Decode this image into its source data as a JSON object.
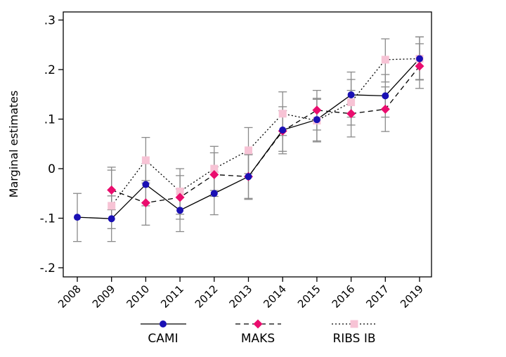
{
  "chart_data": {
    "type": "line",
    "title": "",
    "xlabel": "",
    "ylabel": "Marginal estimates",
    "ylim": [
      -0.22,
      0.32
    ],
    "y_ticks": [
      -0.2,
      -0.1,
      0,
      0.1,
      0.2,
      0.3
    ],
    "y_tick_labels": [
      "-.2",
      "-.1",
      "0",
      ".1",
      ".2",
      ".3"
    ],
    "categories": [
      "2008",
      "2009",
      "2010",
      "2011",
      "2012",
      "2013",
      "2014",
      "2015",
      "2016",
      "2017",
      "2019"
    ],
    "grid": false,
    "legend_position": "bottom",
    "error_bars": true,
    "series": [
      {
        "name": "CAMI",
        "color": "#1a10b4",
        "marker": "circle",
        "line_style": "solid",
        "values": [
          -0.098,
          -0.101,
          -0.032,
          -0.084,
          -0.05,
          -0.016,
          0.078,
          0.099,
          0.149,
          0.147,
          0.222
        ],
        "lower": [
          -0.147,
          -0.147,
          -0.075,
          -0.127,
          -0.093,
          -0.06,
          0.03,
          0.056,
          0.104,
          0.104,
          0.179
        ],
        "upper": [
          -0.05,
          -0.055,
          0.01,
          -0.041,
          -0.007,
          0.028,
          0.125,
          0.142,
          0.195,
          0.19,
          0.266
        ]
      },
      {
        "name": "MAKS",
        "color": "#ea0d6e",
        "marker": "diamond",
        "line_style": "dashed",
        "values": [
          null,
          -0.043,
          -0.069,
          -0.058,
          -0.012,
          -0.016,
          0.076,
          0.118,
          0.111,
          0.12,
          0.207
        ],
        "lower": [
          null,
          -0.083,
          -0.114,
          -0.102,
          -0.056,
          -0.062,
          0.035,
          0.078,
          0.064,
          0.075,
          0.162
        ],
        "upper": [
          null,
          -0.003,
          -0.024,
          -0.014,
          0.032,
          0.03,
          0.117,
          0.158,
          0.158,
          0.165,
          0.252
        ]
      },
      {
        "name": "RIBS IB",
        "color": "#f7c3d5",
        "marker": "square",
        "line_style": "dotted",
        "values": [
          null,
          -0.075,
          0.017,
          -0.046,
          0.0,
          0.037,
          0.111,
          0.097,
          0.134,
          0.22,
          0.222
        ],
        "lower": [
          null,
          -0.121,
          -0.029,
          -0.092,
          -0.044,
          -0.01,
          0.067,
          0.054,
          0.088,
          0.175,
          0.18
        ],
        "upper": [
          null,
          0.003,
          0.063,
          0.0,
          0.045,
          0.083,
          0.155,
          0.14,
          0.18,
          0.262,
          0.266
        ]
      }
    ]
  }
}
